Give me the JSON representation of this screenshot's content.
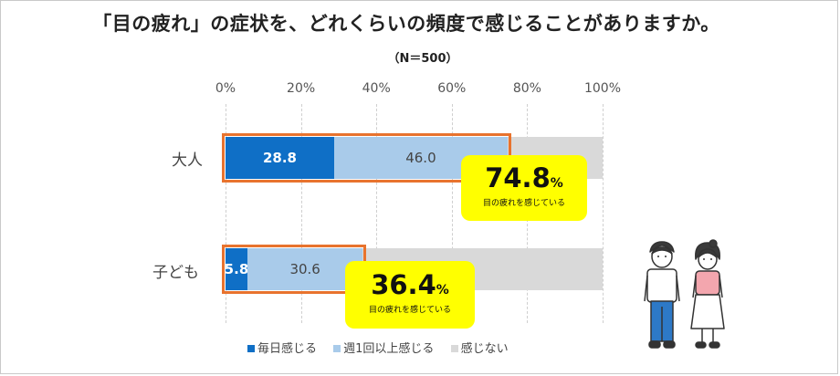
{
  "colors": {
    "daily": "#0f6fc6",
    "weekly": "#a9cbea",
    "none": "#d9d9d9",
    "highlight": "#e8732e",
    "callout": "#ffff00"
  },
  "chart_data": {
    "type": "bar",
    "orientation": "horizontal",
    "stacked": true,
    "title": "「目の疲れ」の症状を、どれくらいの頻度で感じることがありますか。",
    "subtitle": "（N＝500）",
    "categories": [
      "大人",
      "子ども"
    ],
    "x_ticks": [
      "0%",
      "20%",
      "40%",
      "60%",
      "80%",
      "100%"
    ],
    "xlim": [
      0,
      100
    ],
    "grid": true,
    "legend_position": "bottom",
    "series": [
      {
        "name": "毎日感じる",
        "values": [
          28.8,
          5.8
        ],
        "labels": [
          "28.8",
          "5.8"
        ]
      },
      {
        "name": "週1回以上感じる",
        "values": [
          46.0,
          30.6
        ],
        "labels": [
          "46.0",
          "30.6"
        ]
      },
      {
        "name": "感じない",
        "values": [
          25.2,
          63.6
        ]
      }
    ],
    "annotations": [
      {
        "category": "大人",
        "value_text": "74.8",
        "unit": "%",
        "caption": "目の疲れを感じている"
      },
      {
        "category": "子ども",
        "value_text": "36.4",
        "unit": "%",
        "caption": "目の疲れを感じている"
      }
    ]
  }
}
